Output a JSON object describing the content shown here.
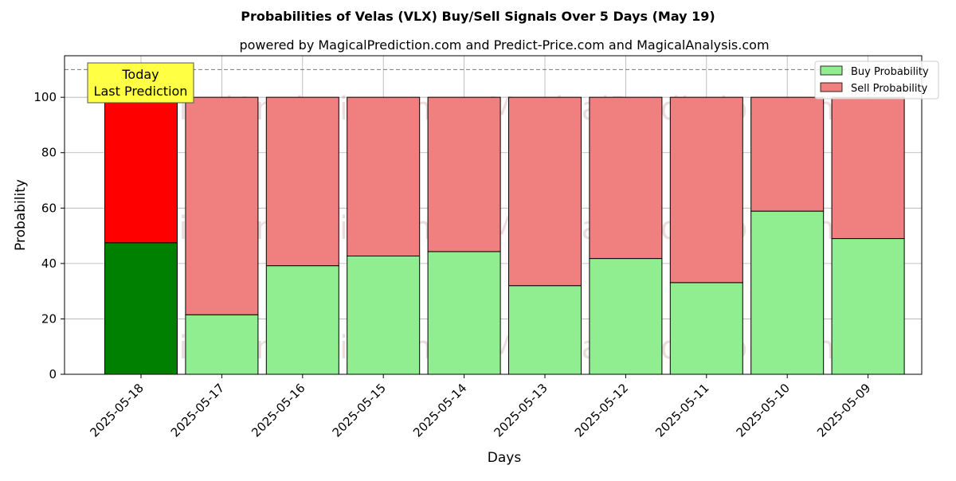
{
  "chart_data": {
    "type": "bar",
    "stacked": true,
    "title": "Probabilities of Velas (VLX) Buy/Sell Signals Over 5 Days (May 19)",
    "subtitle": "powered by MagicalPrediction.com and Predict-Price.com and MagicalAnalysis.com",
    "xlabel": "Days",
    "ylabel": "Probability",
    "ylim": [
      0,
      115
    ],
    "yticks": [
      0,
      20,
      40,
      60,
      80,
      100
    ],
    "grid": true,
    "legend_position": "top-right",
    "reference_line": 110,
    "categories": [
      "2025-05-18",
      "2025-05-17",
      "2025-05-16",
      "2025-05-15",
      "2025-05-14",
      "2025-05-13",
      "2025-05-12",
      "2025-05-11",
      "2025-05-10",
      "2025-05-09"
    ],
    "series": [
      {
        "name": "Buy Probability",
        "values": [
          47.5,
          21.5,
          39.2,
          42.7,
          44.3,
          32.0,
          41.8,
          33.1,
          58.9,
          49.0
        ],
        "color": "#90ee90",
        "highlight_color": "#008000"
      },
      {
        "name": "Sell Probability",
        "values": [
          52.5,
          78.5,
          60.8,
          57.3,
          55.7,
          68.0,
          58.2,
          66.9,
          41.1,
          51.0
        ],
        "color": "#f08080",
        "highlight_color": "#ff0000"
      }
    ],
    "annotation": {
      "line1": "Today",
      "line2": "Last Prediction",
      "box_color": "#ffff44"
    },
    "watermarks": [
      "MagicalAnalysis.com",
      "MagicalPrediction.com"
    ]
  }
}
